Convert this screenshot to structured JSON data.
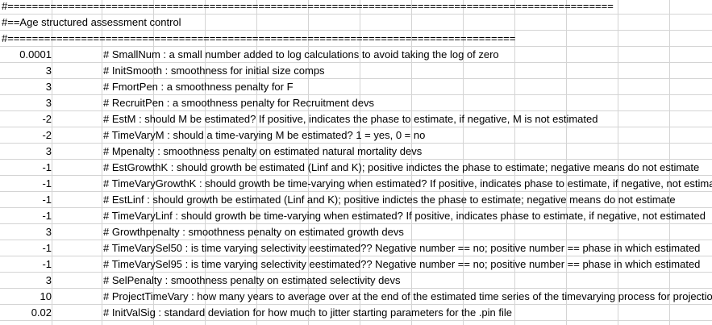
{
  "header_rows": [
    "#===================================================================================================",
    "#==Age structured assessment control",
    "#==================================================================================="
  ],
  "rows": [
    {
      "value": "0.0001",
      "text": "# SmallNum : a small number added to log calculations to avoid taking the log of zero"
    },
    {
      "value": "3",
      "text": "# InitSmooth : smoothness for initial size comps"
    },
    {
      "value": "3",
      "text": "# FmortPen : a smoothness penalty for F"
    },
    {
      "value": "3",
      "text": "# RecruitPen : a smoothness penalty for Recruitment devs"
    },
    {
      "value": "-2",
      "text": "# EstM : should M be estimated? If positive, indicates the phase to estimate, if negative, M is not estimated"
    },
    {
      "value": "-2",
      "text": "# TimeVaryM : should a time-varying M be estimated? 1 = yes, 0 = no"
    },
    {
      "value": "3",
      "text": "# Mpenalty : smoothness penalty on estimated natural mortality devs"
    },
    {
      "value": "-1",
      "text": "# EstGrowthK : should growth be estimated (Linf and K); positive indictes the phase to estimate; negative means do not estimate"
    },
    {
      "value": "-1",
      "text": "# TimeVaryGrowthK : should growth be time-varying when estimated? If positive, indicates phase to estimate, if negative, not estimated"
    },
    {
      "value": "-1",
      "text": "# EstLinf : should growth be estimated (Linf and K); positive indictes the phase to estimate; negative means do not estimate"
    },
    {
      "value": "-1",
      "text": "# TimeVaryLinf : should growth be time-varying when estimated? If positive, indicates phase to estimate, if negative, not estimated"
    },
    {
      "value": "3",
      "text": "# Growthpenalty : smoothness penalty on estimated growth devs"
    },
    {
      "value": "-1",
      "text": "# TimeVarySel50 : is time varying selectivity eestimated?? Negative number == no; positive number == phase in which estimated"
    },
    {
      "value": "-1",
      "text": "# TimeVarySel95 : is time varying selectivity eestimated?? Negative number == no; positive number == phase in which estimated"
    },
    {
      "value": "3",
      "text": "# SelPenalty : smoothness penalty on estimated selectivity devs"
    },
    {
      "value": "10",
      "text": "# ProjectTimeVary : how many years to average over at the end of the estimated time series of the timevarying process for projections"
    },
    {
      "value": "0.02",
      "text": "# InitValSig : standard deviation for how much to jitter starting parameters for the .pin file"
    }
  ]
}
